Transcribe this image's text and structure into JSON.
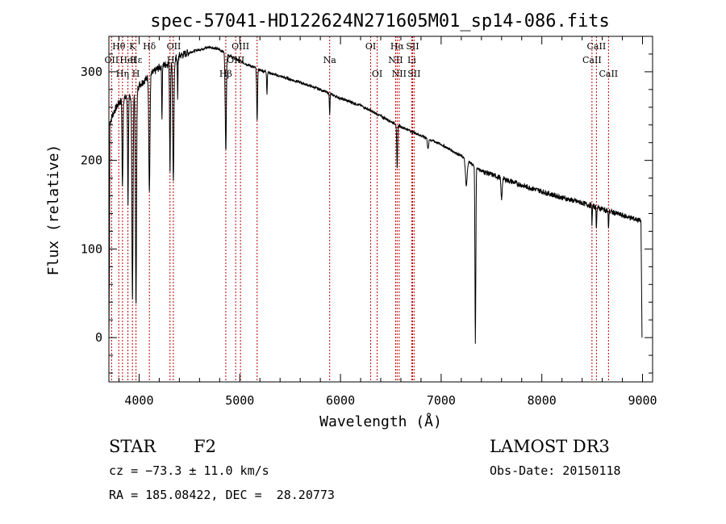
{
  "chart_data": {
    "type": "line",
    "title": "spec-57041-HD122624N271605M01_sp14-086.fits",
    "xlabel": "Wavelength (Å)",
    "ylabel": "Flux (relative)",
    "xlim": [
      3700,
      9100
    ],
    "ylim": [
      -50,
      340
    ],
    "x_ticks": [
      4000,
      5000,
      6000,
      7000,
      8000,
      9000
    ],
    "y_ticks": [
      0,
      100,
      200,
      300
    ],
    "series": [
      {
        "name": "flux",
        "continuum": [
          [
            3700,
            240
          ],
          [
            3750,
            255
          ],
          [
            3800,
            265
          ],
          [
            3850,
            270
          ],
          [
            3900,
            272
          ],
          [
            3950,
            275
          ],
          [
            4000,
            285
          ],
          [
            4100,
            295
          ],
          [
            4200,
            305
          ],
          [
            4300,
            310
          ],
          [
            4400,
            318
          ],
          [
            4500,
            322
          ],
          [
            4600,
            325
          ],
          [
            4700,
            328
          ],
          [
            4800,
            325
          ],
          [
            4900,
            318
          ],
          [
            5000,
            312
          ],
          [
            5200,
            302
          ],
          [
            5400,
            295
          ],
          [
            5600,
            288
          ],
          [
            5800,
            280
          ],
          [
            6000,
            270
          ],
          [
            6200,
            262
          ],
          [
            6400,
            250
          ],
          [
            6600,
            238
          ],
          [
            6800,
            228
          ],
          [
            7000,
            218
          ],
          [
            7200,
            205
          ],
          [
            7400,
            188
          ],
          [
            7600,
            180
          ],
          [
            7800,
            172
          ],
          [
            8000,
            165
          ],
          [
            8200,
            158
          ],
          [
            8400,
            152
          ],
          [
            8600,
            145
          ],
          [
            8800,
            138
          ],
          [
            8980,
            132
          ]
        ],
        "absorption_lines": [
          {
            "wave": 3934,
            "depth": 230,
            "width": 8
          },
          {
            "wave": 3969,
            "depth": 240,
            "width": 8
          },
          {
            "wave": 3890,
            "depth": 120,
            "width": 6
          },
          {
            "wave": 3835,
            "depth": 100,
            "width": 6
          },
          {
            "wave": 4102,
            "depth": 130,
            "width": 8
          },
          {
            "wave": 4227,
            "depth": 60,
            "width": 4
          },
          {
            "wave": 4307,
            "depth": 120,
            "width": 6
          },
          {
            "wave": 4340,
            "depth": 140,
            "width": 8
          },
          {
            "wave": 4383,
            "depth": 50,
            "width": 4
          },
          {
            "wave": 4861,
            "depth": 110,
            "width": 8
          },
          {
            "wave": 5172,
            "depth": 60,
            "width": 6
          },
          {
            "wave": 5270,
            "depth": 25,
            "width": 4
          },
          {
            "wave": 5893,
            "depth": 25,
            "width": 4
          },
          {
            "wave": 6563,
            "depth": 50,
            "width": 6
          },
          {
            "wave": 6870,
            "depth": 12,
            "width": 8
          },
          {
            "wave": 7250,
            "depth": 30,
            "width": 12
          },
          {
            "wave": 7340,
            "depth": 200,
            "width": 6
          },
          {
            "wave": 7600,
            "depth": 25,
            "width": 8
          },
          {
            "wave": 8498,
            "depth": 20,
            "width": 4
          },
          {
            "wave": 8542,
            "depth": 25,
            "width": 4
          },
          {
            "wave": 8662,
            "depth": 22,
            "width": 4
          }
        ],
        "edges": [
          [
            3700,
            0
          ],
          [
            3705,
            80
          ],
          [
            8985,
            130
          ],
          [
            8995,
            0
          ]
        ]
      }
    ],
    "line_markers": [
      {
        "label": "Hθ",
        "wave": 3798,
        "row": 1
      },
      {
        "label": "OII",
        "wave": 3727,
        "row": 2
      },
      {
        "label": "Hη",
        "wave": 3835,
        "row": 3
      },
      {
        "label": "K",
        "wave": 3934,
        "row": 1
      },
      {
        "label": "HeI",
        "wave": 3889,
        "row": 2
      },
      {
        "label": "H",
        "wave": 3969,
        "row": 3
      },
      {
        "label": "Hδ",
        "wave": 4102,
        "row": 1
      },
      {
        "label": "Hε",
        "wave": 3970,
        "row": 2
      },
      {
        "label": "OII",
        "wave": 4345,
        "row": 1
      },
      {
        "label": "Hγ",
        "wave": 4340,
        "row": 2
      },
      {
        "label": "OIII",
        "wave": 5007,
        "row": 1
      },
      {
        "label": "OIII",
        "wave": 4959,
        "row": 2
      },
      {
        "label": "Hβ",
        "wave": 4861,
        "row": 3
      },
      {
        "label": "Na",
        "wave": 5893,
        "row": 2
      },
      {
        "label": "OI",
        "wave": 6300,
        "row": 1
      },
      {
        "label": "OI",
        "wave": 6364,
        "row": 3
      },
      {
        "label": "Hα",
        "wave": 6563,
        "row": 1
      },
      {
        "label": "SII",
        "wave": 6716,
        "row": 1
      },
      {
        "label": "NII",
        "wave": 6548,
        "row": 2
      },
      {
        "label": "Li",
        "wave": 6708,
        "row": 2
      },
      {
        "label": "NII",
        "wave": 6583,
        "row": 3
      },
      {
        "label": "SII",
        "wave": 6731,
        "row": 3
      },
      {
        "label": "CaII",
        "wave": 8542,
        "row": 1
      },
      {
        "label": "CaII",
        "wave": 8498,
        "row": 2
      },
      {
        "label": "CaII",
        "wave": 8662,
        "row": 3
      }
    ],
    "marker_waves": [
      3727,
      3798,
      3835,
      3889,
      3934,
      3969,
      4102,
      4307,
      4340,
      4861,
      4959,
      5007,
      5172,
      5893,
      6300,
      6364,
      6548,
      6563,
      6583,
      6708,
      6716,
      6731,
      8498,
      8542,
      8662
    ],
    "marker_color": "#c00000"
  },
  "info": {
    "object_type": "STAR",
    "subclass": "F2",
    "survey": "LAMOST DR3",
    "redshift": "cz = −73.3 ± 11.0 km/s",
    "obs_date": "Obs-Date: 20150118",
    "coords": "RA = 185.08422, DEC =  28.20773"
  }
}
